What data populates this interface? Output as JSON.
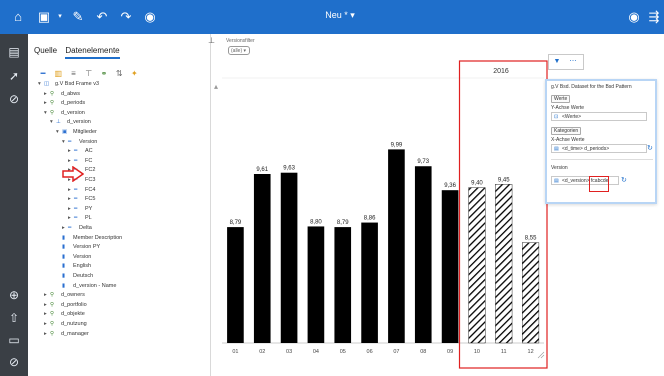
{
  "app": {
    "title": "Neu *",
    "colors": {
      "brand": "#1f6fcb",
      "rail": "#3a3f45",
      "bar": "#000000",
      "highlight": "#e02020"
    }
  },
  "toolbar": {
    "icons": [
      "home-icon",
      "save-icon",
      "edit-icon",
      "undo-icon",
      "redo-icon",
      "play-icon",
      "preview-icon",
      "share-icon"
    ]
  },
  "left_rail": {
    "icons": [
      "data-icon",
      "design-icon",
      "filter-icon",
      "add-icon",
      "upload-icon",
      "comment-icon",
      "help-icon"
    ]
  },
  "panel": {
    "tabs": [
      "Quelle",
      "Datenelemente"
    ],
    "tree": [
      {
        "label": "g.V Bsd Frame v3",
        "indent": 0,
        "icon": "model"
      },
      {
        "label": "d_abws",
        "indent": 1,
        "icon": "dim"
      },
      {
        "label": "d_periods",
        "indent": 1,
        "icon": "dim"
      },
      {
        "label": "d_version",
        "indent": 1,
        "icon": "dim"
      },
      {
        "label": "d_version",
        "indent": 2,
        "icon": "hier"
      },
      {
        "label": "Mitglieder",
        "indent": 3,
        "icon": "folder"
      },
      {
        "label": "Version",
        "indent": 4,
        "icon": "level"
      },
      {
        "label": "AC",
        "indent": 5,
        "icon": "level"
      },
      {
        "label": "FC",
        "indent": 5,
        "icon": "level"
      },
      {
        "label": "FC2",
        "indent": 5,
        "icon": "level"
      },
      {
        "label": "FC3",
        "indent": 5,
        "icon": "level"
      },
      {
        "label": "FC4",
        "indent": 5,
        "icon": "level"
      },
      {
        "label": "FC5",
        "indent": 5,
        "icon": "level"
      },
      {
        "label": "PY",
        "indent": 5,
        "icon": "level"
      },
      {
        "label": "PL",
        "indent": 5,
        "icon": "level"
      },
      {
        "label": "Delta",
        "indent": 4,
        "icon": "level"
      },
      {
        "label": "Member Description",
        "indent": 3,
        "icon": "attr"
      },
      {
        "label": "Version PY",
        "indent": 3,
        "icon": "attr"
      },
      {
        "label": "Version",
        "indent": 3,
        "icon": "attr"
      },
      {
        "label": "English",
        "indent": 3,
        "icon": "attr"
      },
      {
        "label": "Deutsch",
        "indent": 3,
        "icon": "attr"
      },
      {
        "label": "d_version - Name",
        "indent": 3,
        "icon": "attr"
      },
      {
        "label": "d_owners",
        "indent": 1,
        "icon": "dim"
      },
      {
        "label": "d_portfolio",
        "indent": 1,
        "icon": "dim"
      },
      {
        "label": "d_objekte",
        "indent": 1,
        "icon": "dim"
      },
      {
        "label": "d_nutzung",
        "indent": 1,
        "icon": "dim"
      },
      {
        "label": "d_manager",
        "indent": 1,
        "icon": "dim"
      }
    ]
  },
  "canvas_controls": {
    "dropdown_label": "Versionsfilter",
    "dropdown_value": "(alle)"
  },
  "chart_data": {
    "type": "bar",
    "title": "2016",
    "categories": [
      "01",
      "02",
      "03",
      "04",
      "05",
      "06",
      "07",
      "08",
      "09",
      "10",
      "11",
      "12"
    ],
    "values": [
      8.79,
      9.61,
      9.63,
      8.8,
      8.79,
      8.86,
      9.99,
      9.73,
      9.36,
      9.4,
      9.45,
      8.55
    ],
    "labels": [
      "8,79",
      "9,61",
      "9,63",
      "8,80",
      "8,79",
      "8,86",
      "9,99",
      "9,73",
      "9,36",
      "9,40",
      "9,45",
      "8,55"
    ],
    "hatched_from_index": 9,
    "ylim": [
      0,
      11
    ],
    "grid": false,
    "highlight_box": "months 10–12"
  },
  "properties_panel": {
    "title": "g.V Bsd. Dataset for the Bsd Pattern",
    "series_button": "Werte",
    "y_axis_label": "Y-Achse Werte",
    "y_axis_value": "<Werte>",
    "categories_button": "Kategorien",
    "x_axis_label": "X-Achse Werte",
    "x_axis_value": "<d_time> d_periods>",
    "version_label": "Version",
    "version_value": "<d_version> fcabcde"
  }
}
